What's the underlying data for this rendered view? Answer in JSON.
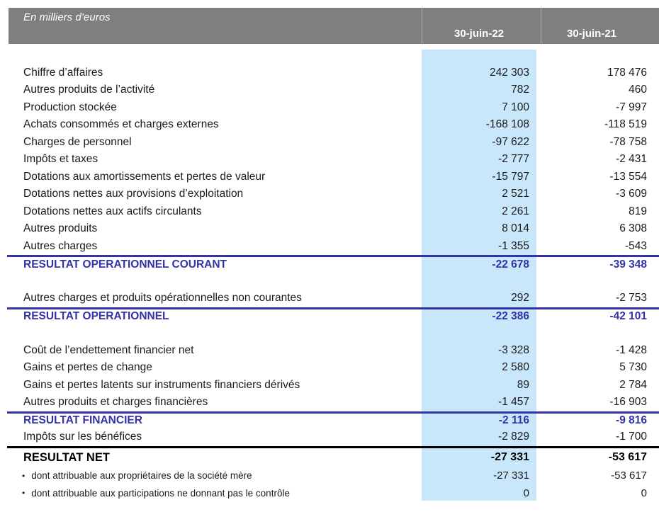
{
  "header": {
    "unit_label": "En milliers d’euros",
    "columns": [
      {
        "label": "30-juin-22"
      },
      {
        "label": "30-juin-21"
      }
    ]
  },
  "colors": {
    "header_bar": "#7f7f7f",
    "highlight_column": "#c9e7fb",
    "subtotal_navy": "#3333a6",
    "total_black": "#000000"
  },
  "table": {
    "bullet": "•",
    "rows": [
      {
        "type": "blank"
      },
      {
        "type": "item",
        "label": "Chiffre d’affaires",
        "v1": "242 303",
        "v2": "178 476"
      },
      {
        "type": "item",
        "label": "Autres produits de l’activité",
        "v1": "782",
        "v2": "460"
      },
      {
        "type": "item",
        "label": "Production stockée",
        "v1": "7 100",
        "v2": "-7 997"
      },
      {
        "type": "item",
        "label": "Achats consommés et charges externes",
        "v1": "-168 108",
        "v2": "-118 519"
      },
      {
        "type": "item",
        "label": "Charges de personnel",
        "v1": "-97 622",
        "v2": "-78 758"
      },
      {
        "type": "item",
        "label": "Impôts et taxes",
        "v1": "-2 777",
        "v2": "-2 431"
      },
      {
        "type": "item",
        "label": "Dotations aux amortissements et pertes de valeur",
        "v1": "-15 797",
        "v2": "-13 554"
      },
      {
        "type": "item",
        "label": "Dotations nettes aux provisions d’exploitation",
        "v1": "2 521",
        "v2": "-3 609"
      },
      {
        "type": "item",
        "label": "Dotations nettes aux actifs circulants",
        "v1": "2 261",
        "v2": "819"
      },
      {
        "type": "item",
        "label": "Autres produits",
        "v1": "8 014",
        "v2": "6 308"
      },
      {
        "type": "item",
        "label": "Autres charges",
        "v1": "-1 355",
        "v2": "-543"
      },
      {
        "type": "subtotal",
        "label": "RESULTAT OPERATIONNEL COURANT",
        "v1": "-22 678",
        "v2": "-39 348"
      },
      {
        "type": "blank"
      },
      {
        "type": "item",
        "label": "Autres charges et produits opérationnelles non courantes",
        "v1": "292",
        "v2": "-2 753"
      },
      {
        "type": "subtotal",
        "label": "RESULTAT OPERATIONNEL",
        "v1": "-22 386",
        "v2": "-42 101"
      },
      {
        "type": "blank"
      },
      {
        "type": "item",
        "label": "Coût de l’endettement financier net",
        "v1": "-3 328",
        "v2": "-1 428"
      },
      {
        "type": "item",
        "label": "Gains et pertes de change",
        "v1": "2 580",
        "v2": "5 730"
      },
      {
        "type": "item",
        "label": "Gains et pertes latents sur instruments financiers dérivés",
        "v1": "89",
        "v2": "2 784"
      },
      {
        "type": "item",
        "label": "Autres produits et charges financières",
        "v1": "-1 457",
        "v2": "-16 903"
      },
      {
        "type": "subtotal",
        "label": "RESULTAT FINANCIER",
        "v1": "-2 116",
        "v2": "-9 816"
      },
      {
        "type": "item",
        "label": "Impôts sur les bénéfices",
        "v1": "-2 829",
        "v2": "-1 700"
      },
      {
        "type": "total",
        "label": "RESULTAT NET",
        "v1": "-27 331",
        "v2": "-53 617"
      },
      {
        "type": "note",
        "label": "dont attribuable aux propriétaires de la société mère",
        "v1": "-27 331",
        "v2": "-53 617"
      },
      {
        "type": "note",
        "label": "dont attribuable aux participations ne donnant pas le contrôle",
        "v1": "0",
        "v2": "0"
      }
    ]
  }
}
